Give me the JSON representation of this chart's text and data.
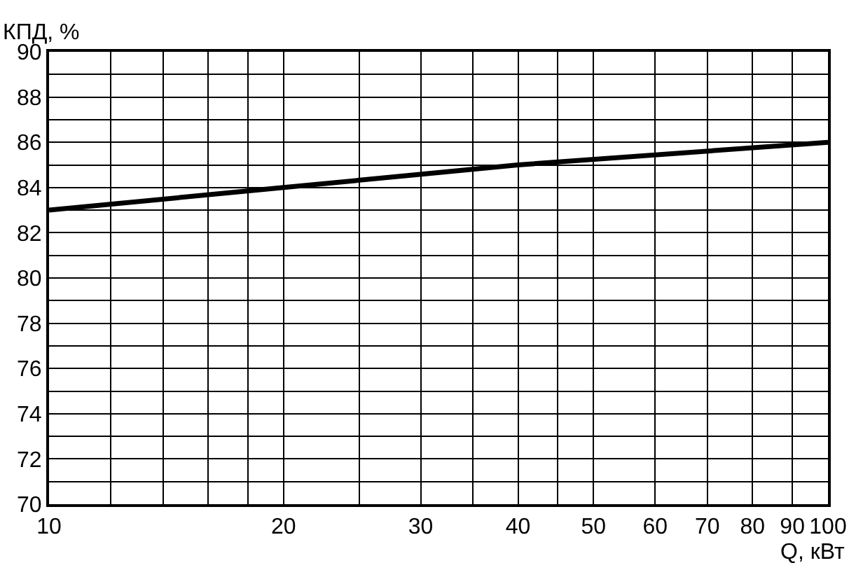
{
  "chart_data": {
    "type": "line",
    "xlabel": "Q, кВт",
    "ylabel": "КПД, %",
    "x": [
      10,
      20,
      40,
      100
    ],
    "series": [
      {
        "color": "#000000",
        "values": [
          83,
          84,
          85,
          86
        ]
      }
    ],
    "log": "x",
    "xlim": [
      10,
      100
    ],
    "xticks": [
      10,
      {
        "value": 12,
        "label": null
      },
      {
        "value": 14,
        "label": null
      },
      {
        "value": 16,
        "label": null
      },
      {
        "value": 18,
        "label": null
      },
      20,
      {
        "value": 25,
        "label": null
      },
      30,
      {
        "value": 35,
        "label": null
      },
      40,
      {
        "value": 45,
        "label": null
      },
      50,
      60,
      70,
      80,
      90,
      100
    ],
    "ylim": [
      70,
      90
    ],
    "yticks": [
      70,
      {
        "value": 71,
        "label": null
      },
      72,
      {
        "value": 73,
        "label": null
      },
      74,
      {
        "value": 75,
        "label": null
      },
      76,
      {
        "value": 77,
        "label": null
      },
      78,
      {
        "value": 79,
        "label": null
      },
      80,
      {
        "value": 81,
        "label": null
      },
      82,
      {
        "value": 83,
        "label": null
      },
      84,
      {
        "value": 85,
        "label": null
      },
      86,
      {
        "value": 87,
        "label": null
      },
      88,
      {
        "value": 89,
        "label": null
      },
      90
    ],
    "grid": true,
    "marker": "none",
    "line_style": "solid"
  }
}
